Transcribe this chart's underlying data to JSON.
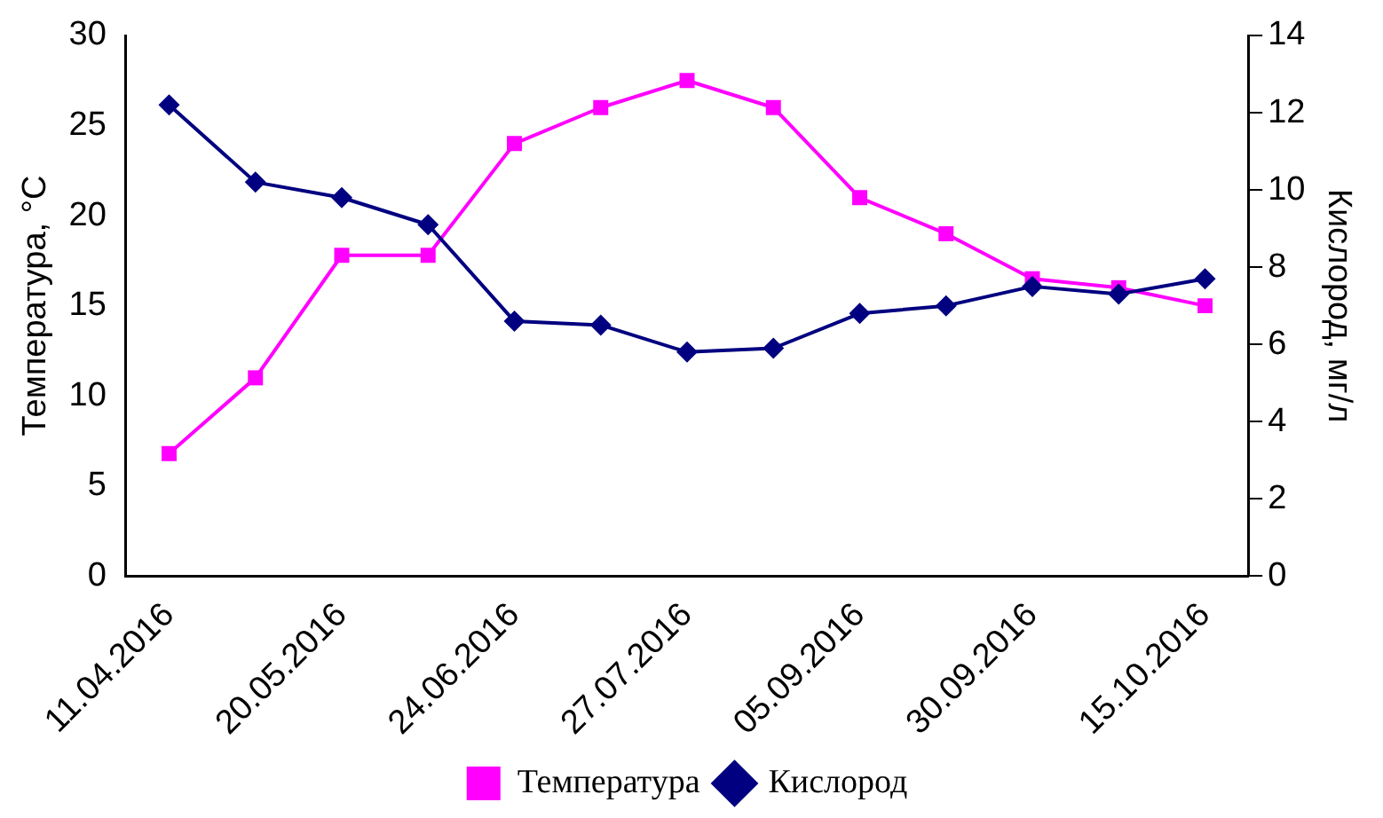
{
  "chart_data": {
    "type": "line",
    "xlabel": null,
    "ylabel": "Температура, °С",
    "y2label": "Кислород, мг/л",
    "categories": [
      "11.04.2016",
      null,
      "20.05.2016",
      null,
      "24.06.2016",
      null,
      "27.07.2016",
      null,
      "05.09.2016",
      null,
      "30.09.2016",
      null,
      "15.10.2016"
    ],
    "series": [
      {
        "name": "Температура",
        "color": "#ff00ff",
        "marker": "square",
        "values": [
          6.8,
          11,
          17.8,
          17.8,
          24,
          26,
          27.5,
          26,
          21,
          19,
          16.5,
          16,
          15
        ]
      },
      {
        "name": "Кислород",
        "color": "#000080",
        "marker": "diamond",
        "axis": "y2",
        "values": [
          12.2,
          10.2,
          9.8,
          9.1,
          6.6,
          6.5,
          5.8,
          5.9,
          6.8,
          7.0,
          7.5,
          7.3,
          7.7
        ]
      }
    ],
    "ylim": [
      0,
      30
    ],
    "yticks": [
      0,
      5,
      10,
      15,
      20,
      25,
      30
    ],
    "y2lim": [
      0,
      14
    ],
    "y2ticks": [
      0,
      2,
      4,
      6,
      8,
      10,
      12,
      14
    ],
    "grid": false,
    "legend": "bottom"
  }
}
